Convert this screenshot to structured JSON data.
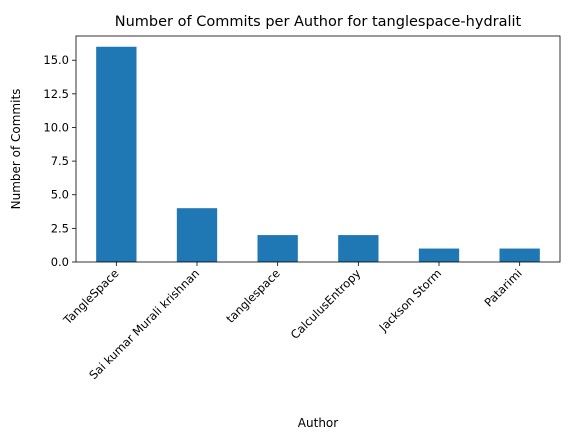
{
  "chart_data": {
    "type": "bar",
    "title": "Number of Commits per Author for tanglespace-hydralit",
    "xlabel": "Author",
    "ylabel": "Number of Commits",
    "categories": [
      "TangleSpace",
      "Sai kumar Murali krishnan",
      "tanglespace",
      "CalculusEntropy",
      "Jackson Storm",
      "Patarimi"
    ],
    "values": [
      16,
      4,
      2,
      2,
      1,
      1
    ],
    "ylim": [
      0,
      16.8
    ],
    "yticks": [
      "0.0",
      "2.5",
      "5.0",
      "7.5",
      "10.0",
      "12.5",
      "15.0"
    ],
    "grid": false,
    "bar_color": "#1f77b4"
  }
}
